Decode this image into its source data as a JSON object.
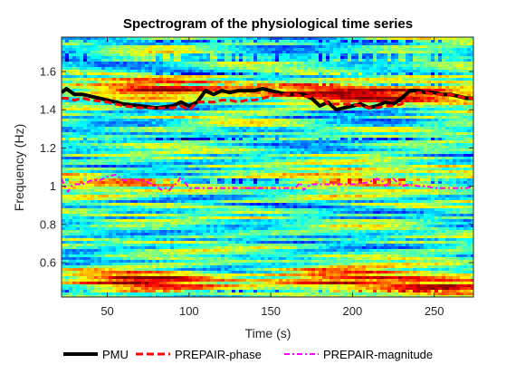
{
  "chart_data": {
    "type": "heatmap",
    "title": "Spectrogram of the physiological time series",
    "xlabel": "Time (s)",
    "ylabel": "Frequency (Hz)",
    "xlim": [
      22,
      274
    ],
    "ylim": [
      0.42,
      1.78
    ],
    "xticks": [
      50,
      100,
      150,
      200,
      250
    ],
    "yticks": [
      0.6,
      0.8,
      1.0,
      1.2,
      1.4,
      1.6
    ],
    "xtick_labels": [
      "50",
      "100",
      "150",
      "200",
      "250"
    ],
    "ytick_labels": [
      "0.6",
      "0.8",
      "1",
      "1.2",
      "1.4",
      "1.6"
    ],
    "colormap": "jet",
    "grid": false,
    "legend_position": "bottom",
    "heatmap_features": [
      {
        "t": 80,
        "f": 1.51,
        "intensity": 0.85
      },
      {
        "t": 190,
        "f": 1.5,
        "intensity": 0.8
      },
      {
        "t": 250,
        "f": 1.48,
        "intensity": 0.6
      },
      {
        "t": 70,
        "f": 0.5,
        "intensity": 0.85
      },
      {
        "t": 190,
        "f": 0.52,
        "intensity": 0.8
      },
      {
        "t": 260,
        "f": 0.48,
        "intensity": 0.75
      },
      {
        "t": 200,
        "f": 1.04,
        "intensity": 0.7
      },
      {
        "t": 35,
        "f": 1.0,
        "intensity": 0.5
      }
    ],
    "series": [
      {
        "name": "PMU",
        "color": "#000000",
        "style": "solid",
        "x": [
          22,
          25,
          30,
          35,
          40,
          50,
          60,
          70,
          80,
          90,
          95,
          100,
          105,
          110,
          115,
          120,
          125,
          130,
          135,
          140,
          145,
          150,
          155,
          160,
          165,
          170,
          175,
          180,
          185,
          190,
          195,
          200,
          205,
          210,
          215,
          220,
          225,
          230,
          235,
          240,
          245,
          250,
          255,
          260,
          265,
          270,
          274
        ],
        "y": [
          1.49,
          1.51,
          1.48,
          1.48,
          1.47,
          1.45,
          1.43,
          1.42,
          1.41,
          1.42,
          1.44,
          1.42,
          1.44,
          1.5,
          1.48,
          1.5,
          1.49,
          1.5,
          1.5,
          1.5,
          1.51,
          1.5,
          1.49,
          1.48,
          1.48,
          1.48,
          1.46,
          1.42,
          1.44,
          1.4,
          1.41,
          1.42,
          1.43,
          1.41,
          1.42,
          1.44,
          1.43,
          1.46,
          1.5,
          1.5,
          1.49,
          1.49,
          1.48,
          1.48,
          1.47,
          1.46,
          1.46
        ]
      },
      {
        "name": "PREPAIR-phase",
        "color": "#ff0000",
        "style": "dashed",
        "x": [
          22,
          25,
          30,
          35,
          40,
          50,
          60,
          70,
          80,
          85,
          90,
          95,
          100,
          105,
          110,
          115,
          120,
          125,
          130,
          135,
          140,
          145,
          150,
          155,
          160,
          165,
          170,
          175,
          180,
          185,
          190,
          195,
          200,
          205,
          210,
          215,
          220,
          225,
          230,
          235,
          240,
          245,
          250,
          255,
          260,
          265,
          270,
          274
        ],
        "y": [
          1.46,
          1.46,
          1.45,
          1.46,
          1.45,
          1.44,
          1.42,
          1.41,
          1.41,
          1.41,
          1.41,
          1.42,
          1.4,
          1.44,
          1.44,
          1.44,
          1.45,
          1.45,
          1.44,
          1.45,
          1.45,
          1.46,
          1.47,
          1.48,
          1.48,
          1.48,
          1.47,
          1.47,
          1.48,
          1.43,
          1.43,
          1.43,
          1.43,
          1.42,
          1.41,
          1.41,
          1.42,
          1.42,
          1.43,
          1.46,
          1.49,
          1.49,
          1.48,
          1.48,
          1.48,
          1.47,
          1.46,
          1.46
        ]
      },
      {
        "name": "PREPAIR-magnitude",
        "color": "#ff00ff",
        "style": "dashdot",
        "x": [
          22,
          24,
          26,
          28,
          30,
          35,
          40,
          45,
          50,
          55,
          60,
          65,
          70,
          75,
          80,
          83,
          85,
          88,
          90,
          93,
          95,
          100,
          110,
          120,
          130,
          140,
          150,
          160,
          165,
          168,
          170,
          173,
          175,
          180,
          190,
          200,
          210,
          215,
          218,
          220,
          225,
          230,
          235,
          240,
          245,
          250,
          255,
          260,
          265,
          270,
          274
        ],
        "y": [
          1.04,
          1.0,
          0.97,
          1.0,
          1.01,
          1.01,
          1.03,
          1.03,
          1.05,
          1.06,
          1.03,
          1.04,
          1.03,
          1.02,
          1.0,
          0.98,
          0.99,
          0.98,
          1.0,
          1.02,
          1.05,
          0.99,
          0.99,
          0.99,
          0.99,
          0.99,
          0.99,
          0.99,
          0.99,
          1.02,
          0.98,
          1.0,
          1.01,
          1.01,
          1.01,
          1.01,
          1.02,
          1.04,
          1.03,
          1.0,
          1.04,
          1.0,
          1.01,
          1.0,
          1.0,
          0.99,
          0.99,
          0.99,
          0.99,
          0.99,
          1.0
        ]
      }
    ]
  }
}
